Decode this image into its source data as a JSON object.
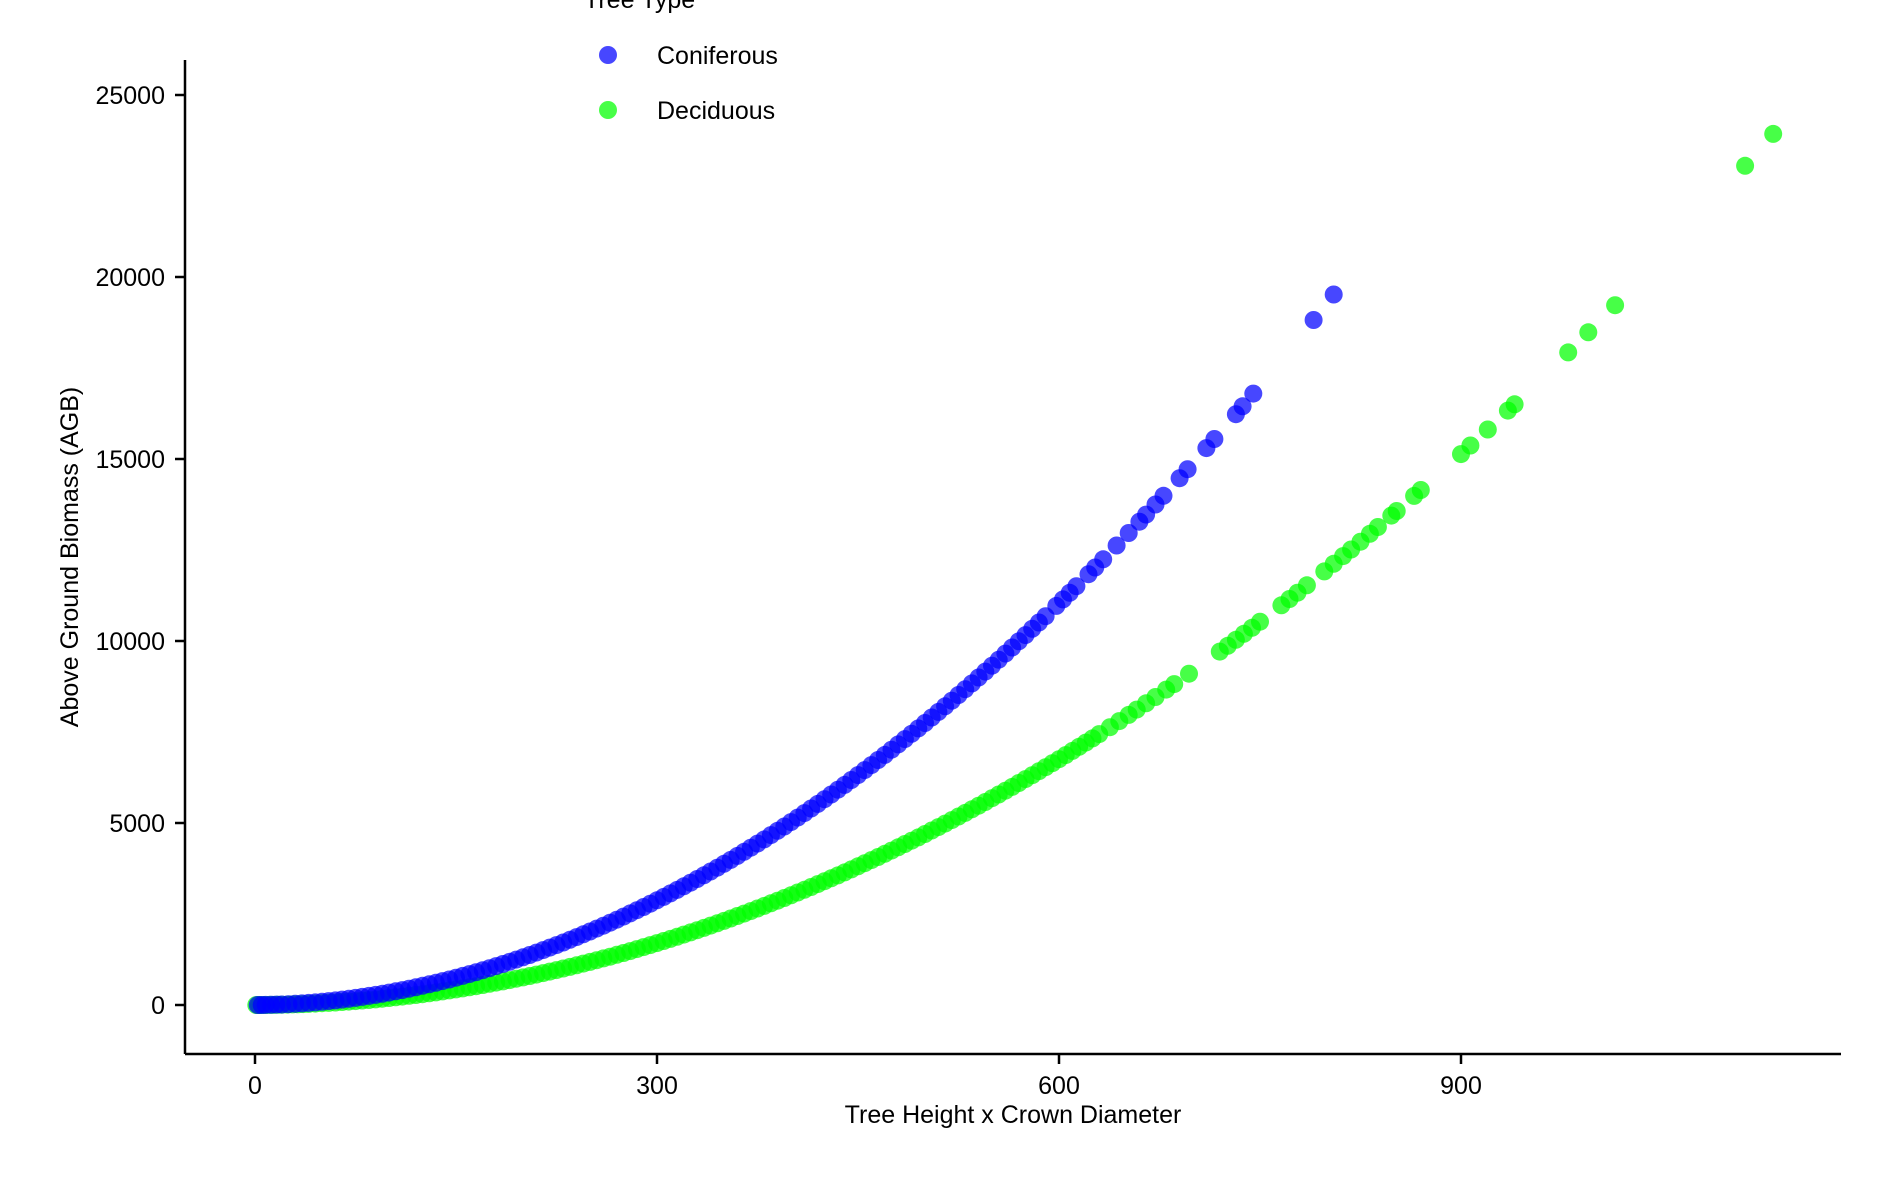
{
  "chart_data": {
    "type": "scatter",
    "title": "",
    "xlabel": "Tree Height x Crown Diameter",
    "ylabel": "Above Ground Biomass (AGB)",
    "xlim": [
      -50,
      1190
    ],
    "ylim": [
      -1200,
      26000
    ],
    "x_ticks": [
      0,
      300,
      600,
      900
    ],
    "y_ticks": [
      0,
      5000,
      10000,
      15000,
      20000,
      25000
    ],
    "grid": false,
    "legend": {
      "title": "Tree Type",
      "position": "top",
      "entries": [
        "Coniferous",
        "Deciduous"
      ]
    },
    "series": [
      {
        "name": "Coniferous",
        "color": "#0000ff",
        "curve": {
          "a": 0.045,
          "b": 1.94
        },
        "x": [
          2,
          5,
          8,
          12,
          16,
          20,
          25,
          30,
          35,
          40,
          45,
          50,
          55,
          60,
          65,
          70,
          75,
          80,
          85,
          90,
          95,
          100,
          105,
          110,
          115,
          120,
          125,
          130,
          135,
          140,
          145,
          150,
          155,
          160,
          165,
          170,
          175,
          180,
          185,
          190,
          195,
          200,
          205,
          210,
          215,
          220,
          225,
          230,
          235,
          240,
          245,
          250,
          255,
          260,
          265,
          270,
          275,
          280,
          285,
          290,
          295,
          300,
          305,
          310,
          315,
          320,
          325,
          330,
          335,
          340,
          345,
          350,
          355,
          360,
          365,
          370,
          375,
          380,
          385,
          390,
          395,
          400,
          405,
          410,
          415,
          420,
          425,
          430,
          435,
          440,
          445,
          450,
          455,
          460,
          465,
          470,
          475,
          480,
          485,
          490,
          495,
          500,
          505,
          510,
          515,
          520,
          525,
          530,
          535,
          540,
          545,
          550,
          555,
          560,
          565,
          570,
          575,
          580,
          585,
          590,
          598,
          603,
          608,
          613,
          622,
          627,
          633,
          643,
          652,
          660,
          665,
          672,
          678,
          690,
          696,
          710,
          716,
          732,
          737,
          745,
          790,
          805
        ]
      },
      {
        "name": "Deciduous",
        "color": "#00ff00",
        "curve": {
          "a": 0.02,
          "b": 1.99
        },
        "x": [
          1,
          3,
          5,
          8,
          11,
          14,
          17,
          20,
          24,
          28,
          32,
          36,
          40,
          45,
          50,
          55,
          60,
          65,
          70,
          75,
          80,
          85,
          90,
          95,
          100,
          105,
          110,
          115,
          120,
          125,
          130,
          135,
          140,
          145,
          150,
          155,
          160,
          165,
          170,
          175,
          180,
          185,
          190,
          195,
          200,
          205,
          210,
          215,
          220,
          225,
          230,
          235,
          240,
          245,
          250,
          255,
          260,
          265,
          270,
          275,
          280,
          285,
          290,
          295,
          300,
          305,
          310,
          315,
          320,
          325,
          330,
          335,
          340,
          345,
          350,
          355,
          360,
          365,
          370,
          375,
          380,
          385,
          390,
          395,
          400,
          405,
          410,
          415,
          420,
          425,
          430,
          435,
          440,
          445,
          450,
          455,
          460,
          465,
          470,
          475,
          480,
          485,
          490,
          495,
          500,
          505,
          510,
          515,
          520,
          525,
          530,
          535,
          540,
          545,
          550,
          555,
          560,
          565,
          570,
          575,
          580,
          585,
          590,
          595,
          600,
          605,
          610,
          615,
          620,
          625,
          630,
          638,
          645,
          652,
          658,
          665,
          672,
          680,
          686,
          697,
          720,
          726,
          732,
          738,
          744,
          750,
          766,
          772,
          778,
          785,
          798,
          805,
          812,
          818,
          825,
          832,
          838,
          848,
          852,
          865,
          870,
          900,
          907,
          920,
          935,
          940,
          980,
          995,
          1015,
          1112,
          1133
        ]
      }
    ]
  }
}
